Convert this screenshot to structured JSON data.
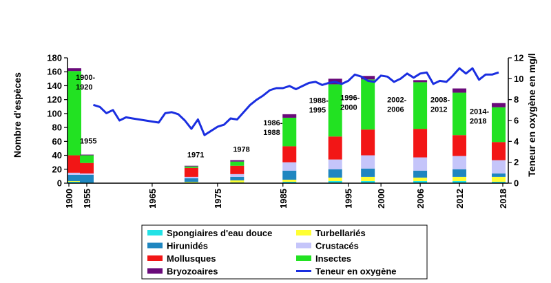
{
  "chart_data": {
    "type": "bar",
    "stacked": true,
    "y_left_label": "Nombre d'espèces",
    "y_right_label": "Teneur en oxygène en mg/l",
    "y_left_range": [
      0,
      180
    ],
    "y_left_ticks": [
      0,
      20,
      40,
      60,
      80,
      100,
      120,
      140,
      160,
      180
    ],
    "y_right_range": [
      0,
      12
    ],
    "y_right_ticks": [
      0,
      2,
      4,
      6,
      8,
      10,
      12
    ],
    "x_ticks": [
      "1900",
      "1955",
      "1965",
      "1975",
      "1985",
      "1995",
      "2000",
      "2006",
      "2012",
      "2018"
    ],
    "gridlines": false,
    "legend_position": "bottom",
    "bars": [
      {
        "year": 1900,
        "label": "1900-\n1920",
        "values": [
          2,
          1,
          9,
          3,
          25,
          121,
          4
        ]
      },
      {
        "year": 1955,
        "label": "1955",
        "values": [
          1,
          0,
          11,
          2,
          15,
          11,
          1
        ]
      },
      {
        "year": 1971,
        "label": "1971",
        "values": [
          1,
          1,
          5,
          2,
          13,
          2,
          1
        ]
      },
      {
        "year": 1978,
        "label": "1978",
        "values": [
          1,
          3,
          5,
          4,
          12,
          6,
          2
        ]
      },
      {
        "year": 1986,
        "label": "1986-\n1988",
        "values": [
          2,
          3,
          13,
          12,
          23,
          41,
          5
        ]
      },
      {
        "year": 1993,
        "label": "1988-\n1995",
        "values": [
          3,
          5,
          12,
          14,
          33,
          75,
          8
        ]
      },
      {
        "year": 1998,
        "label": "1996-\n2000",
        "values": [
          3,
          6,
          12,
          19,
          37,
          72,
          5
        ]
      },
      {
        "year": 2006,
        "label": "2002-\n2006",
        "values": [
          3,
          5,
          10,
          19,
          41,
          67,
          3
        ]
      },
      {
        "year": 2012,
        "label": "2008-\n2012",
        "values": [
          3,
          6,
          11,
          19,
          30,
          61,
          6
        ]
      },
      {
        "year": 2018,
        "label": "2014-\n2018",
        "values": [
          2,
          7,
          5,
          19,
          26,
          50,
          6
        ]
      }
    ],
    "series": [
      {
        "name": "Spongiaires d'eau douce",
        "color": "#22e2e6"
      },
      {
        "name": "Turbellariés",
        "color": "#ffff33"
      },
      {
        "name": "Hirunidés",
        "color": "#1f86c0"
      },
      {
        "name": "Crustacés",
        "color": "#c5c5fa"
      },
      {
        "name": "Mollusques",
        "color": "#f21616"
      },
      {
        "name": "Insectes",
        "color": "#22e222"
      },
      {
        "name": "Bryozoaires",
        "color": "#6a0a7a"
      }
    ],
    "line": {
      "name": "Teneur en oxygène",
      "color": "#1a2ee0",
      "axis": "right",
      "points": [
        [
          1956,
          7.5
        ],
        [
          1957,
          7.3
        ],
        [
          1958,
          6.7
        ],
        [
          1959,
          7.0
        ],
        [
          1960,
          6.0
        ],
        [
          1961,
          6.3
        ],
        [
          1962,
          6.2
        ],
        [
          1963,
          6.1
        ],
        [
          1964,
          6.0
        ],
        [
          1965,
          5.9
        ],
        [
          1966,
          5.8
        ],
        [
          1967,
          6.7
        ],
        [
          1968,
          6.8
        ],
        [
          1969,
          6.6
        ],
        [
          1970,
          6.0
        ],
        [
          1971,
          5.2
        ],
        [
          1972,
          6.1
        ],
        [
          1973,
          4.6
        ],
        [
          1974,
          5.0
        ],
        [
          1975,
          5.4
        ],
        [
          1976,
          5.6
        ],
        [
          1977,
          6.2
        ],
        [
          1978,
          6.1
        ],
        [
          1979,
          6.8
        ],
        [
          1980,
          7.5
        ],
        [
          1981,
          8.0
        ],
        [
          1982,
          8.4
        ],
        [
          1983,
          8.9
        ],
        [
          1984,
          9.1
        ],
        [
          1985,
          9.1
        ],
        [
          1986,
          9.3
        ],
        [
          1987,
          9.0
        ],
        [
          1988,
          9.3
        ],
        [
          1989,
          9.6
        ],
        [
          1990,
          9.7
        ],
        [
          1991,
          9.4
        ],
        [
          1992,
          9.6
        ],
        [
          1993,
          9.7
        ],
        [
          1994,
          9.5
        ],
        [
          1995,
          9.8
        ],
        [
          1996,
          10.4
        ],
        [
          1997,
          10.2
        ],
        [
          1998,
          9.8
        ],
        [
          1999,
          9.7
        ],
        [
          2000,
          10.3
        ],
        [
          2001,
          10.2
        ],
        [
          2002,
          9.7
        ],
        [
          2003,
          10.0
        ],
        [
          2004,
          10.5
        ],
        [
          2005,
          10.1
        ],
        [
          2006,
          10.5
        ],
        [
          2007,
          10.6
        ],
        [
          2008,
          9.5
        ],
        [
          2009,
          9.8
        ],
        [
          2010,
          9.7
        ],
        [
          2011,
          10.3
        ],
        [
          2012,
          11.0
        ],
        [
          2013,
          10.5
        ],
        [
          2014,
          11.0
        ],
        [
          2015,
          9.9
        ],
        [
          2016,
          10.4
        ],
        [
          2017,
          10.4
        ],
        [
          2018,
          10.6
        ]
      ]
    }
  }
}
